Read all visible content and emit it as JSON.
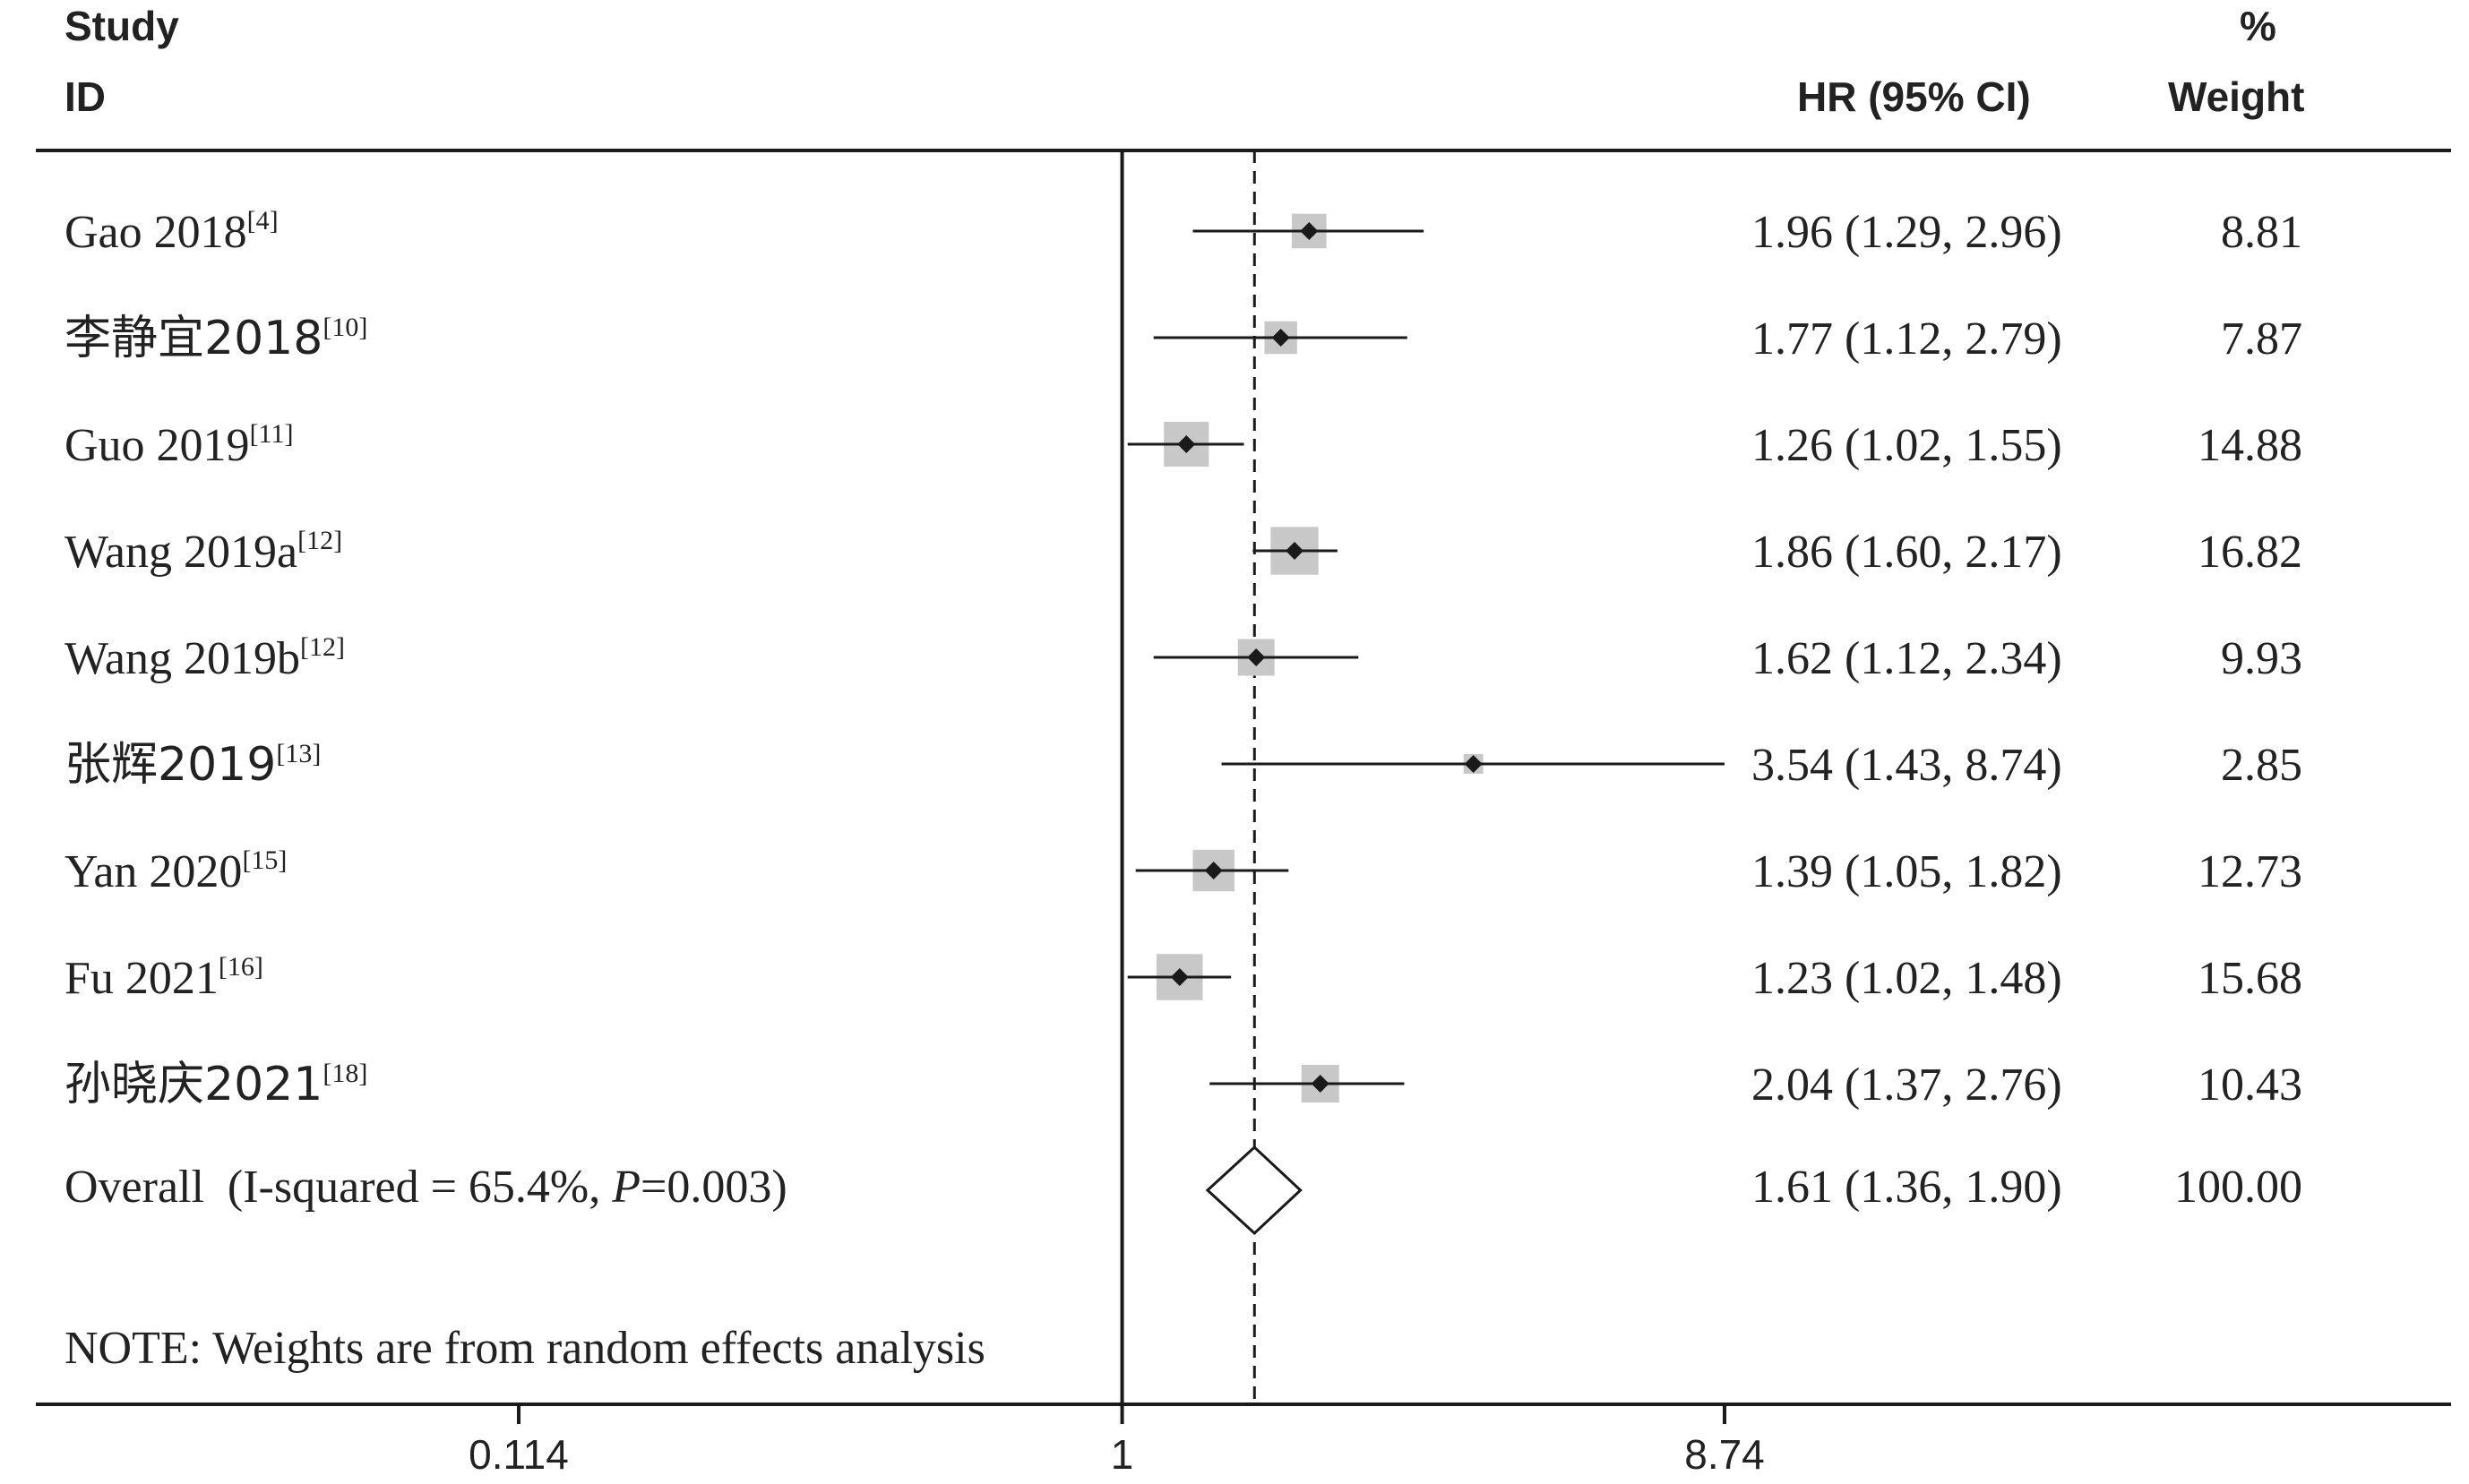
{
  "header": {
    "study_line1": "Study",
    "study_line2": "ID",
    "hr_label": "HR (95% CI)",
    "weight_line1": "%",
    "weight_line2": "Weight"
  },
  "note": "NOTE: Weights are from random effects analysis",
  "overall": {
    "label_prefix": "Overall  (I-squared = 65.4%, ",
    "label_p": "P",
    "label_suffix": "=0.003)",
    "hr": 1.61,
    "lo": 1.36,
    "hi": 1.9,
    "hr_text": "1.61 (1.36, 1.90)",
    "weight_text": "100.00"
  },
  "colors": {
    "box": "#c8c8c8",
    "line": "#1a1a1a",
    "point": "#1a1a1a"
  },
  "chart_data": {
    "type": "forest",
    "x_scale": "log",
    "xlim": [
      0.114,
      8.74
    ],
    "x_ticks": [
      0.114,
      1,
      8.74
    ],
    "x_tick_labels": [
      "0.114",
      "1",
      "8.74"
    ],
    "null_line": 1,
    "pooled_line": 1.61,
    "studies": [
      {
        "name": "Gao 2018",
        "ref": "[4]",
        "hr": 1.96,
        "lo": 1.29,
        "hi": 2.96,
        "hr_text": "1.96 (1.29, 2.96)",
        "weight": 8.81,
        "weight_text": "8.81"
      },
      {
        "name": "李静宜2018",
        "ref": "[10]",
        "hr": 1.77,
        "lo": 1.12,
        "hi": 2.79,
        "hr_text": "1.77 (1.12, 2.79)",
        "weight": 7.87,
        "weight_text": "7.87"
      },
      {
        "name": "Guo 2019",
        "ref": "[11]",
        "hr": 1.26,
        "lo": 1.02,
        "hi": 1.55,
        "hr_text": "1.26 (1.02, 1.55)",
        "weight": 14.88,
        "weight_text": "14.88"
      },
      {
        "name": "Wang 2019a",
        "ref": "[12]",
        "hr": 1.86,
        "lo": 1.6,
        "hi": 2.17,
        "hr_text": "1.86 (1.60, 2.17)",
        "weight": 16.82,
        "weight_text": "16.82"
      },
      {
        "name": "Wang 2019b",
        "ref": "[12]",
        "hr": 1.62,
        "lo": 1.12,
        "hi": 2.34,
        "hr_text": "1.62 (1.12, 2.34)",
        "weight": 9.93,
        "weight_text": "9.93"
      },
      {
        "name": "张辉2019",
        "ref": "[13]",
        "hr": 3.54,
        "lo": 1.43,
        "hi": 8.74,
        "hr_text": "3.54 (1.43, 8.74)",
        "weight": 2.85,
        "weight_text": "2.85"
      },
      {
        "name": "Yan 2020",
        "ref": "[15]",
        "hr": 1.39,
        "lo": 1.05,
        "hi": 1.82,
        "hr_text": "1.39 (1.05, 1.82)",
        "weight": 12.73,
        "weight_text": "12.73"
      },
      {
        "name": "Fu 2021",
        "ref": "[16]",
        "hr": 1.23,
        "lo": 1.02,
        "hi": 1.48,
        "hr_text": "1.23 (1.02, 1.48)",
        "weight": 15.68,
        "weight_text": "15.68"
      },
      {
        "name": "孙晓庆2021",
        "ref": "[18]",
        "hr": 2.04,
        "lo": 1.37,
        "hi": 2.76,
        "hr_text": "2.04 (1.37, 2.76)",
        "weight": 10.43,
        "weight_text": "10.43"
      }
    ]
  }
}
